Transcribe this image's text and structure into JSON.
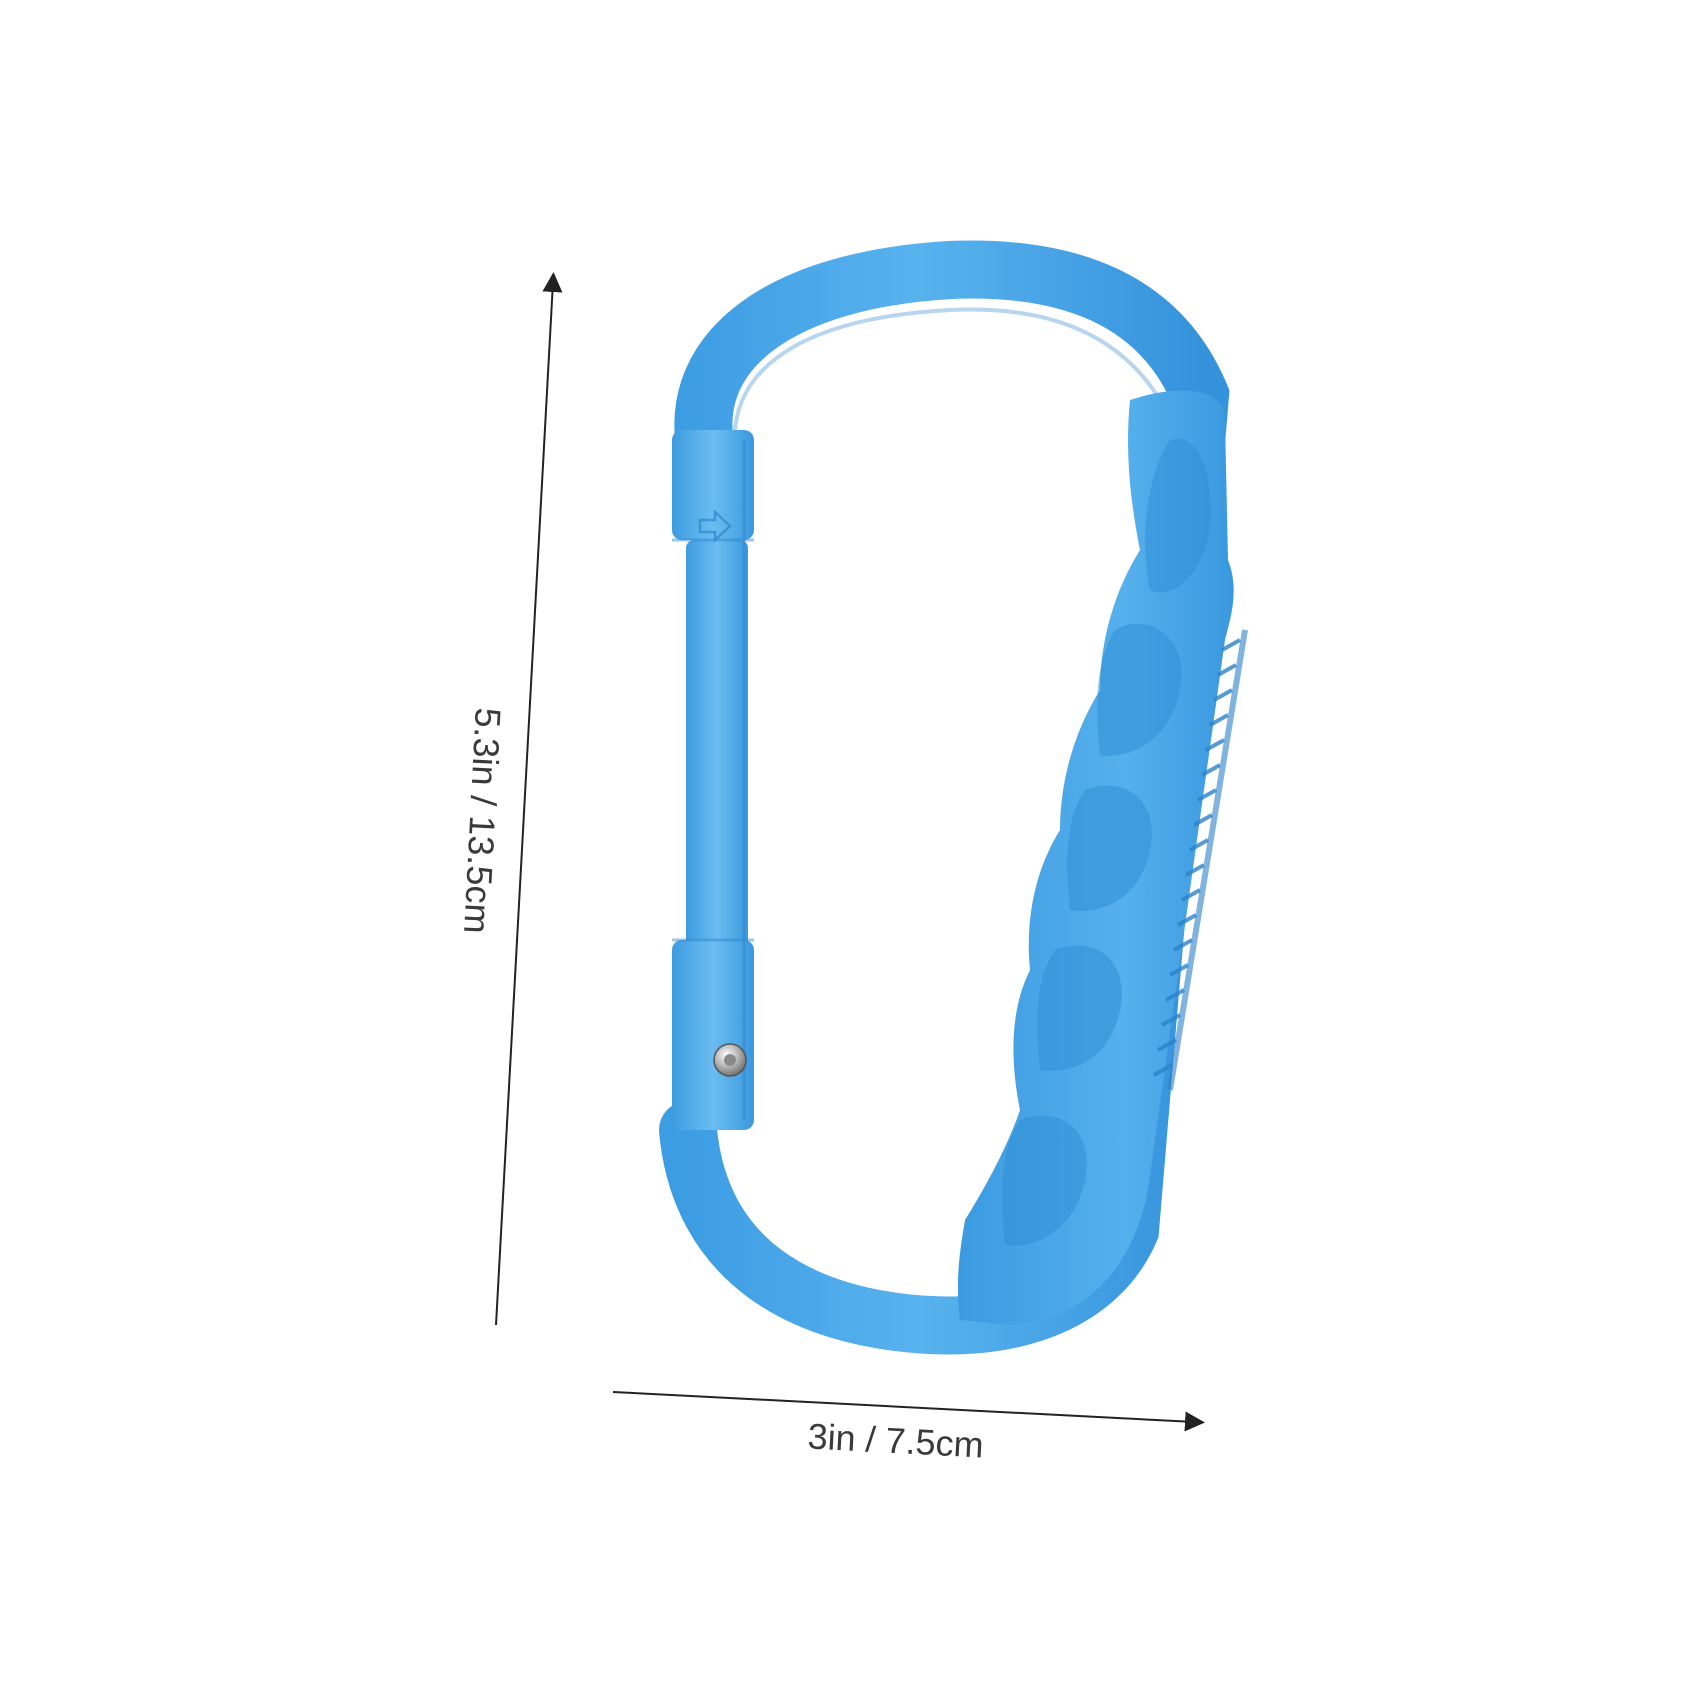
{
  "product": {
    "icon": "carabiner-hook-icon",
    "color": "#4aa8e8",
    "color_dark": "#2f8fd6",
    "color_light": "#7cc3f2"
  },
  "dimensions": {
    "height_label": "5.3in / 13.5cm",
    "width_label": "3in / 7.5cm",
    "line_color": "#222222"
  }
}
